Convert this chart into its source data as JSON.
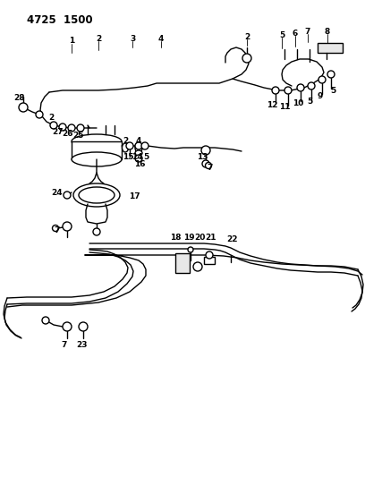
{
  "title": "4725  1500",
  "bg_color": "#ffffff",
  "lc": "#000000",
  "lw": 1.0,
  "fig_w": 4.08,
  "fig_h": 5.33,
  "dpi": 100
}
